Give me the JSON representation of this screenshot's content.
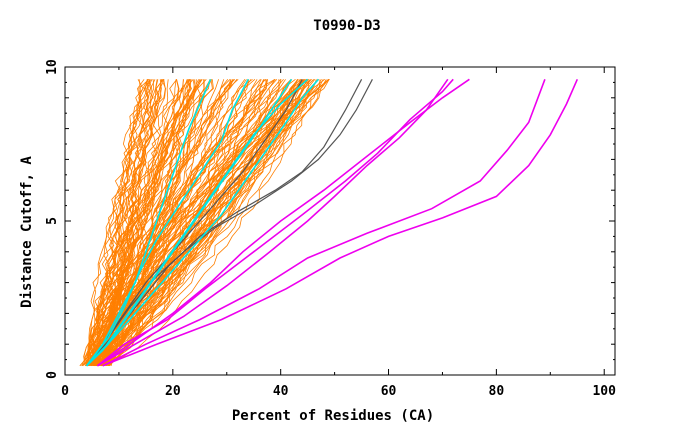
{
  "chart_data": {
    "type": "line",
    "title": "T0990-D3",
    "xlabel": "Percent of Residues (CA)",
    "ylabel": "Distance Cutoff, A",
    "xlim": [
      0,
      102
    ],
    "ylim": [
      0,
      10
    ],
    "x_ticks": [
      0,
      20,
      40,
      60,
      80,
      100
    ],
    "y_ticks": [
      0,
      5,
      10
    ],
    "grid": false,
    "legend": "none",
    "orange_band": {
      "color": "#ff7f00",
      "count": 140,
      "start_x_range": [
        3.5,
        8
      ],
      "end_x_range": [
        14,
        50
      ]
    },
    "series": [
      {
        "color": "#555555",
        "points": [
          [
            4,
            0.3
          ],
          [
            8,
            1.2
          ],
          [
            12,
            2.2
          ],
          [
            17,
            3.2
          ],
          [
            22,
            4.0
          ],
          [
            28,
            4.8
          ],
          [
            35,
            5.5
          ],
          [
            42,
            6.3
          ],
          [
            47,
            7.0
          ],
          [
            51,
            7.8
          ],
          [
            54,
            8.6
          ],
          [
            57,
            9.6
          ]
        ]
      },
      {
        "color": "#555555",
        "points": [
          [
            4,
            0.3
          ],
          [
            9,
            1.3
          ],
          [
            14,
            2.4
          ],
          [
            19,
            3.5
          ],
          [
            25,
            4.5
          ],
          [
            32,
            5.3
          ],
          [
            39,
            6.0
          ],
          [
            44,
            6.6
          ],
          [
            48,
            7.4
          ],
          [
            52,
            8.6
          ],
          [
            55,
            9.6
          ]
        ]
      },
      {
        "color": "#555555",
        "points": [
          [
            4,
            0.3
          ],
          [
            7,
            1.0
          ],
          [
            11,
            2.0
          ],
          [
            15,
            3.0
          ],
          [
            19,
            3.8
          ],
          [
            23,
            4.6
          ],
          [
            28,
            5.6
          ],
          [
            33,
            6.6
          ],
          [
            37,
            7.6
          ],
          [
            41,
            8.6
          ],
          [
            44,
            9.6
          ]
        ]
      },
      {
        "color": "#00e5e5",
        "points": [
          [
            4,
            0.3
          ],
          [
            7,
            1.0
          ],
          [
            10,
            2.0
          ],
          [
            13,
            3.0
          ],
          [
            15,
            4.0
          ],
          [
            17,
            5.0
          ],
          [
            19,
            6.0
          ],
          [
            21,
            7.0
          ],
          [
            23,
            8.0
          ],
          [
            25,
            8.8
          ],
          [
            27,
            9.6
          ]
        ]
      },
      {
        "color": "#00e5e5",
        "points": [
          [
            4,
            0.3
          ],
          [
            8,
            1.2
          ],
          [
            11,
            2.2
          ],
          [
            14,
            3.4
          ],
          [
            17,
            4.4
          ],
          [
            20,
            5.2
          ],
          [
            23,
            6.0
          ],
          [
            26,
            6.8
          ],
          [
            29,
            7.6
          ],
          [
            31,
            8.6
          ],
          [
            34,
            9.6
          ]
        ]
      },
      {
        "color": "#00e5e5",
        "points": [
          [
            4,
            0.3
          ],
          [
            8,
            1.0
          ],
          [
            12,
            2.0
          ],
          [
            16,
            3.0
          ],
          [
            20,
            4.0
          ],
          [
            24,
            5.0
          ],
          [
            28,
            6.0
          ],
          [
            32,
            7.0
          ],
          [
            36,
            8.0
          ],
          [
            39,
            8.8
          ],
          [
            42,
            9.6
          ]
        ]
      },
      {
        "color": "#00e5e5",
        "points": [
          [
            4,
            0.3
          ],
          [
            7,
            0.8
          ],
          [
            11,
            1.8
          ],
          [
            15,
            2.8
          ],
          [
            19,
            3.8
          ],
          [
            23,
            4.8
          ],
          [
            27,
            5.8
          ],
          [
            31,
            6.8
          ],
          [
            35,
            7.8
          ],
          [
            40,
            8.8
          ],
          [
            45,
            9.6
          ]
        ]
      },
      {
        "color": "#00e5e5",
        "points": [
          [
            4,
            0.3
          ],
          [
            9,
            1.2
          ],
          [
            14,
            2.2
          ],
          [
            19,
            3.2
          ],
          [
            24,
            4.2
          ],
          [
            29,
            5.2
          ],
          [
            33,
            6.2
          ],
          [
            37,
            7.2
          ],
          [
            41,
            8.2
          ],
          [
            44,
            9.0
          ],
          [
            47,
            9.6
          ]
        ]
      },
      {
        "color": "#ee00ee",
        "points": [
          [
            6,
            0.3
          ],
          [
            12,
            1.0
          ],
          [
            20,
            2.0
          ],
          [
            27,
            3.0
          ],
          [
            33,
            4.0
          ],
          [
            40,
            5.0
          ],
          [
            48,
            6.0
          ],
          [
            56,
            7.1
          ],
          [
            64,
            8.2
          ],
          [
            70,
            9.0
          ],
          [
            75,
            9.6
          ]
        ]
      },
      {
        "color": "#ee00ee",
        "points": [
          [
            6,
            0.3
          ],
          [
            11,
            1.0
          ],
          [
            19,
            1.8
          ],
          [
            26,
            2.8
          ],
          [
            32,
            3.6
          ],
          [
            38,
            4.4
          ],
          [
            44,
            5.2
          ],
          [
            52,
            6.3
          ],
          [
            58,
            7.2
          ],
          [
            64,
            8.3
          ],
          [
            70,
            9.2
          ],
          [
            72,
            9.6
          ]
        ]
      },
      {
        "color": "#ee00ee",
        "points": [
          [
            6,
            0.3
          ],
          [
            13,
            1.0
          ],
          [
            22,
            1.9
          ],
          [
            30,
            2.9
          ],
          [
            38,
            4.0
          ],
          [
            45,
            5.0
          ],
          [
            50,
            5.8
          ],
          [
            56,
            6.8
          ],
          [
            62,
            7.7
          ],
          [
            67,
            8.6
          ],
          [
            71,
            9.6
          ]
        ]
      },
      {
        "color": "#ee00ee",
        "points": [
          [
            7,
            0.3
          ],
          [
            15,
            1.0
          ],
          [
            25,
            1.8
          ],
          [
            36,
            2.8
          ],
          [
            45,
            3.8
          ],
          [
            56,
            4.6
          ],
          [
            68,
            5.4
          ],
          [
            77,
            6.3
          ],
          [
            82,
            7.3
          ],
          [
            86,
            8.2
          ],
          [
            89,
            9.6
          ]
        ]
      },
      {
        "color": "#ee00ee",
        "points": [
          [
            7,
            0.3
          ],
          [
            17,
            1.0
          ],
          [
            29,
            1.8
          ],
          [
            41,
            2.8
          ],
          [
            51,
            3.8
          ],
          [
            60,
            4.5
          ],
          [
            70,
            5.1
          ],
          [
            80,
            5.8
          ],
          [
            86,
            6.8
          ],
          [
            90,
            7.8
          ],
          [
            93,
            8.8
          ],
          [
            95,
            9.6
          ]
        ]
      }
    ]
  }
}
